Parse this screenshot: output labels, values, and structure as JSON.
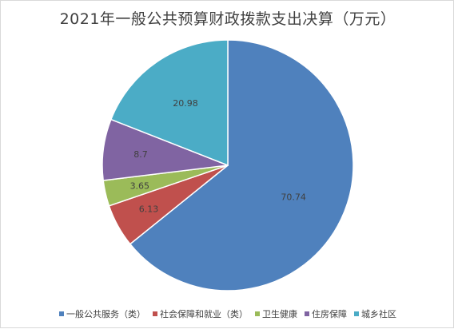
{
  "chart_data": {
    "type": "pie",
    "title": "2021年一般公共预算财政拨款支出决算（万元）",
    "categories": [
      "一般公共服务（类）",
      "社会保障和就业（类）",
      "卫生健康",
      "住房保障",
      "城乡社区"
    ],
    "values": [
      70.74,
      6.13,
      3.65,
      8.7,
      20.98
    ],
    "colors": [
      "#4f81bd",
      "#c0504d",
      "#9bbb59",
      "#8064a2",
      "#4bacc6"
    ],
    "start_angle_deg": 0,
    "direction": "clockwise",
    "legend_position": "bottom"
  }
}
